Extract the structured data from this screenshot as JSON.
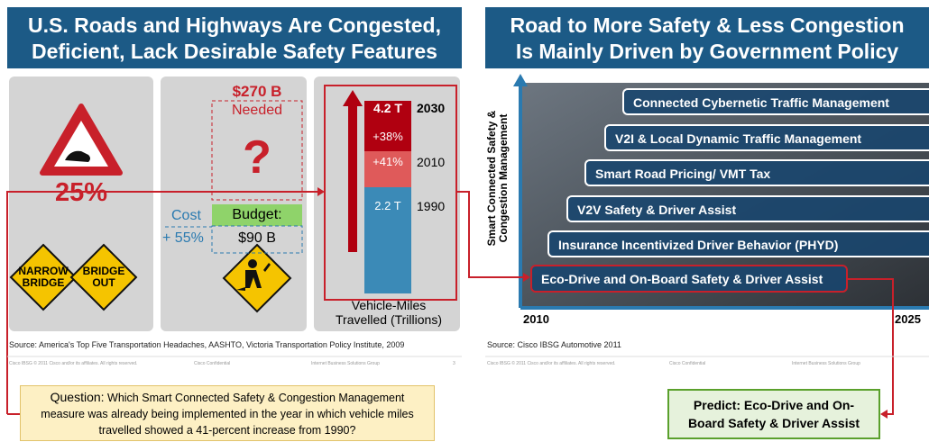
{
  "left": {
    "title_lines": [
      "U.S. Roads and Highways Are Congested,",
      "Deficient, Lack Desirable Safety Features"
    ],
    "stat": "25%",
    "signs": [
      "NARROW BRIDGE",
      "BRIDGE OUT"
    ],
    "needed_amount": "$270 B",
    "needed_label": "Needed",
    "question_mark": "?",
    "cost_label": "Cost",
    "cost_change": "+ 55%",
    "budget_label": "Budget:",
    "budget_amount": "$90 B",
    "vmt": {
      "segments": [
        {
          "label": "4.2 T",
          "change": "+38%",
          "year": "2030"
        },
        {
          "change": "+41%",
          "year": "2010"
        },
        {
          "label": "2.2 T",
          "year": "1990"
        }
      ],
      "caption_lines": [
        "Vehicle-Miles",
        "Travelled (Trillions)"
      ]
    },
    "source": "Source: America's Top Five Transportation  Headaches, AASHTO,  Victoria Transportation Policy Institute,  2009",
    "footer": [
      "Cisco IBSG © 2011 Cisco and/or its affiliates. All rights reserved.",
      "Cisco Confidential",
      "Internet Business Solutions Group",
      "3"
    ]
  },
  "right": {
    "title_lines": [
      "Road to More Safety & Less Congestion",
      "Is Mainly Driven by Government Policy"
    ],
    "y_axis_lines": [
      "Smart Connected Safety &",
      "Congestion Management"
    ],
    "steps": [
      "Connected Cybernetic Traffic Management",
      "V2I & Local Dynamic Traffic Management",
      "Smart Road Pricing/ VMT Tax",
      "V2V Safety & Driver Assist",
      "Insurance Incentivized Driver Behavior (PHYD)",
      "Eco-Drive and On-Board Safety & Driver Assist"
    ],
    "x_start": "2010",
    "x_end": "2025",
    "source": "Source: Cisco IBSG Automotive 2011",
    "footer": [
      "Cisco IBSG © 2011 Cisco and/or its affiliates. All rights reserved.",
      "Cisco Confidential",
      "Internet Business Solutions Group"
    ]
  },
  "question": {
    "lead": "Question:",
    "text": "Which Smart Connected Safety & Congestion Management measure was already being implemented in the year in which vehicle miles travelled showed a 41-percent increase from 1990?"
  },
  "answer": "Predict: Eco-Drive and On-Board Safety & Driver Assist"
}
